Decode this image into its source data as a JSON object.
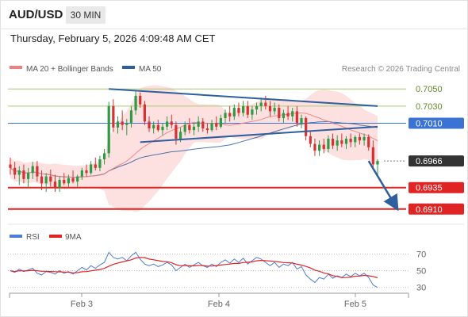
{
  "header": {
    "symbol": "AUD/USD",
    "timeframe": "30 MIN",
    "datetime": "Thursday, February 5, 2026 4:09:48 AM CET"
  },
  "legend": {
    "ma20": "MA 20 + Bollinger Bands",
    "ma50": "MA 50",
    "credit": "Research © 2026 Trading Central"
  },
  "rsi_legend": {
    "rsi": "RSI",
    "ma": "9MA"
  },
  "colors": {
    "bull": "#2f9a44",
    "bear": "#d63232",
    "ma20": "#f08080",
    "band": "#fde0e0",
    "ma50": "#2e5f9e",
    "resistance_fill": "#a8cc70",
    "pivot": "#3a73d4",
    "support": "#e02424",
    "current": "#333333",
    "rsi_line": "#4f7cd6",
    "rsi_ma": "#e02424"
  },
  "chart_data": [
    {
      "type": "candlestick",
      "title": "AUD/USD",
      "x_ticks": [
        "Feb 3",
        "Feb 4",
        "Feb 5"
      ],
      "ylim": [
        0.6895,
        0.7065
      ],
      "series": [
        {
          "name": "AUD/USD",
          "ohlc": [
            [
              0.6962,
              0.697,
              0.695,
              0.6958
            ],
            [
              0.6958,
              0.6965,
              0.6945,
              0.695
            ],
            [
              0.695,
              0.696,
              0.6938,
              0.6955
            ],
            [
              0.6955,
              0.6962,
              0.694,
              0.6945
            ],
            [
              0.6945,
              0.6958,
              0.6935,
              0.6952
            ],
            [
              0.6952,
              0.6965,
              0.6945,
              0.696
            ],
            [
              0.696,
              0.6966,
              0.6942,
              0.6948
            ],
            [
              0.6948,
              0.6955,
              0.6932,
              0.694
            ],
            [
              0.694,
              0.6952,
              0.693,
              0.6948
            ],
            [
              0.6948,
              0.6956,
              0.6936,
              0.6942
            ],
            [
              0.6942,
              0.695,
              0.693,
              0.6935
            ],
            [
              0.6935,
              0.6948,
              0.693,
              0.6944
            ],
            [
              0.6944,
              0.6952,
              0.6938,
              0.694
            ],
            [
              0.694,
              0.695,
              0.6935,
              0.6946
            ],
            [
              0.6946,
              0.6955,
              0.694,
              0.6942
            ],
            [
              0.6942,
              0.695,
              0.6936,
              0.6948
            ],
            [
              0.6948,
              0.6958,
              0.6944,
              0.6955
            ],
            [
              0.6955,
              0.6962,
              0.6948,
              0.6952
            ],
            [
              0.6952,
              0.6966,
              0.695,
              0.6962
            ],
            [
              0.6962,
              0.697,
              0.6955,
              0.6958
            ],
            [
              0.6958,
              0.6972,
              0.6954,
              0.6968
            ],
            [
              0.6968,
              0.698,
              0.6962,
              0.6975
            ],
            [
              0.6975,
              0.7035,
              0.697,
              0.703
            ],
            [
              0.703,
              0.7038,
              0.7,
              0.7005
            ],
            [
              0.7005,
              0.7018,
              0.6998,
              0.7012
            ],
            [
              0.7012,
              0.7025,
              0.7002,
              0.7008
            ],
            [
              0.7008,
              0.7015,
              0.6996,
              0.701
            ],
            [
              0.701,
              0.703,
              0.7005,
              0.7025
            ],
            [
              0.7025,
              0.7048,
              0.702,
              0.7042
            ],
            [
              0.7042,
              0.7046,
              0.7028,
              0.7032
            ],
            [
              0.7032,
              0.7036,
              0.7008,
              0.7012
            ],
            [
              0.7012,
              0.7018,
              0.7,
              0.7004
            ],
            [
              0.7004,
              0.7012,
              0.6998,
              0.7008
            ],
            [
              0.7008,
              0.7014,
              0.7,
              0.7002
            ],
            [
              0.7002,
              0.701,
              0.6996,
              0.7006
            ],
            [
              0.7006,
              0.7018,
              0.7002,
              0.7012
            ],
            [
              0.7012,
              0.702,
              0.7004,
              0.7008
            ],
            [
              0.7008,
              0.7012,
              0.6985,
              0.6992
            ],
            [
              0.6992,
              0.7005,
              0.6988,
              0.7
            ],
            [
              0.7,
              0.7012,
              0.6996,
              0.7008
            ],
            [
              0.7008,
              0.7016,
              0.6998,
              0.7002
            ],
            [
              0.7002,
              0.701,
              0.6996,
              0.7006
            ],
            [
              0.7006,
              0.7018,
              0.7,
              0.7012
            ],
            [
              0.7012,
              0.7016,
              0.7,
              0.7004
            ],
            [
              0.7004,
              0.701,
              0.6998,
              0.7002
            ],
            [
              0.7002,
              0.7014,
              0.7,
              0.701
            ],
            [
              0.701,
              0.7018,
              0.7002,
              0.7006
            ],
            [
              0.7006,
              0.702,
              0.7004,
              0.7016
            ],
            [
              0.7016,
              0.7026,
              0.701,
              0.7022
            ],
            [
              0.7022,
              0.703,
              0.7012,
              0.7018
            ],
            [
              0.7018,
              0.7032,
              0.7014,
              0.7028
            ],
            [
              0.7028,
              0.7034,
              0.7018,
              0.7022
            ],
            [
              0.7022,
              0.7036,
              0.7018,
              0.703
            ],
            [
              0.703,
              0.7036,
              0.7016,
              0.702
            ],
            [
              0.702,
              0.703,
              0.7014,
              0.7026
            ],
            [
              0.7026,
              0.7034,
              0.702,
              0.703
            ],
            [
              0.703,
              0.704,
              0.7024,
              0.7034
            ],
            [
              0.7034,
              0.7042,
              0.7026,
              0.703
            ],
            [
              0.703,
              0.7036,
              0.7018,
              0.7024
            ],
            [
              0.7024,
              0.7034,
              0.702,
              0.7028
            ],
            [
              0.7028,
              0.7032,
              0.7012,
              0.7016
            ],
            [
              0.7016,
              0.7026,
              0.701,
              0.7022
            ],
            [
              0.7022,
              0.703,
              0.7014,
              0.7018
            ],
            [
              0.7018,
              0.7028,
              0.7012,
              0.7024
            ],
            [
              0.7024,
              0.703,
              0.7006,
              0.701
            ],
            [
              0.701,
              0.702,
              0.7004,
              0.7016
            ],
            [
              0.7016,
              0.7018,
              0.699,
              0.6995
            ],
            [
              0.6995,
              0.7,
              0.6982,
              0.6986
            ],
            [
              0.6986,
              0.6992,
              0.6972,
              0.6978
            ],
            [
              0.6978,
              0.699,
              0.6972,
              0.6985
            ],
            [
              0.6985,
              0.6992,
              0.6975,
              0.698
            ],
            [
              0.698,
              0.6996,
              0.6976,
              0.6992
            ],
            [
              0.6992,
              0.6998,
              0.698,
              0.6984
            ],
            [
              0.6984,
              0.6996,
              0.6978,
              0.699
            ],
            [
              0.699,
              0.6998,
              0.6982,
              0.6986
            ],
            [
              0.6986,
              0.6995,
              0.698,
              0.6992
            ],
            [
              0.6992,
              0.6998,
              0.6982,
              0.6988
            ],
            [
              0.6988,
              0.6996,
              0.6982,
              0.6994
            ],
            [
              0.6994,
              0.6998,
              0.6985,
              0.699
            ],
            [
              0.699,
              0.6998,
              0.6984,
              0.6994
            ],
            [
              0.6994,
              0.6997,
              0.6978,
              0.6982
            ],
            [
              0.6982,
              0.699,
              0.6958,
              0.6962
            ],
            [
              0.6962,
              0.6968,
              0.695,
              0.6966
            ]
          ]
        },
        {
          "name": "MA 20 + Bollinger Bands"
        },
        {
          "name": "MA 50"
        }
      ],
      "levels": [
        {
          "label": "0.7050",
          "value": 0.705,
          "role": "resistance"
        },
        {
          "label": "0.7030",
          "value": 0.703,
          "role": "resistance"
        },
        {
          "label": "0.7010",
          "value": 0.701,
          "role": "pivot"
        },
        {
          "label": "0.6966",
          "value": 0.6966,
          "role": "last"
        },
        {
          "label": "0.6935",
          "value": 0.6935,
          "role": "support"
        },
        {
          "label": "0.6910",
          "value": 0.691,
          "role": "support"
        }
      ],
      "trendlines": [
        {
          "from": [
            22,
            0.705
          ],
          "to": [
            82,
            0.703
          ]
        },
        {
          "from": [
            29,
            0.6988
          ],
          "to": [
            82,
            0.7006
          ]
        }
      ],
      "forecast_arrow": {
        "from": [
          80,
          0.6966
        ],
        "to": [
          86,
          0.691
        ]
      }
    },
    {
      "type": "line",
      "title": "RSI",
      "ylim": [
        25,
        80
      ],
      "y_ticks": [
        "70",
        "50",
        "30"
      ],
      "series": [
        {
          "name": "RSI",
          "values": [
            50,
            48,
            52,
            49,
            51,
            53,
            47,
            45,
            49,
            48,
            46,
            50,
            47,
            49,
            46,
            50,
            54,
            51,
            56,
            53,
            57,
            60,
            72,
            66,
            64,
            66,
            62,
            68,
            72,
            64,
            58,
            56,
            58,
            55,
            57,
            60,
            57,
            50,
            54,
            58,
            54,
            57,
            60,
            56,
            54,
            58,
            55,
            60,
            63,
            59,
            64,
            60,
            65,
            58,
            62,
            66,
            64,
            60,
            56,
            60,
            54,
            58,
            56,
            60,
            52,
            55,
            45,
            40,
            36,
            42,
            40,
            46,
            41,
            44,
            42,
            46,
            43,
            47,
            44,
            47,
            42,
            33,
            30
          ]
        },
        {
          "name": "9MA"
        }
      ]
    }
  ]
}
